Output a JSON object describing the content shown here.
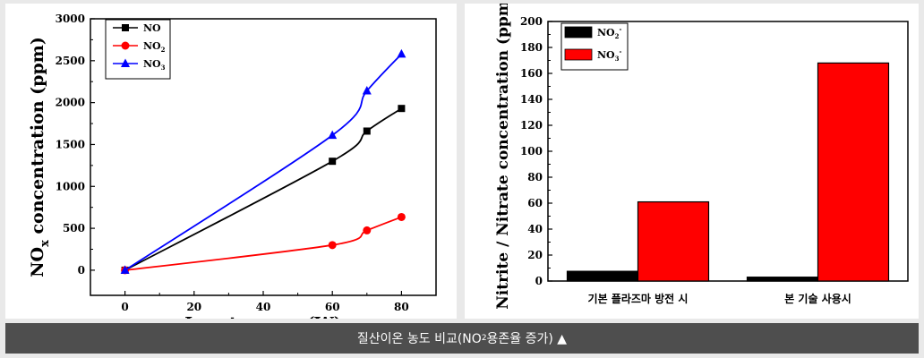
{
  "chart_data": [
    {
      "type": "line",
      "xlabel": "Input power (W)",
      "ylabel_main": "NO",
      "ylabel_sub": "x",
      "ylabel_rest": " concentration (ppm)",
      "xlim": [
        -10,
        90
      ],
      "ylim": [
        -300,
        3000
      ],
      "xticks": [
        "0",
        "20",
        "40",
        "60",
        "80"
      ],
      "yticks": [
        "0",
        "500",
        "1000",
        "1500",
        "2000",
        "2500",
        "3000"
      ],
      "legend_position": "top-left",
      "series": [
        {
          "name": "NO",
          "sub": "",
          "color": "#000000",
          "marker": "square",
          "x": [
            0,
            60,
            70,
            80
          ],
          "y": [
            0,
            1300,
            1660,
            1930
          ]
        },
        {
          "name": "NO",
          "sub": "2",
          "color": "#ff0000",
          "marker": "circle",
          "x": [
            0,
            60,
            70,
            80
          ],
          "y": [
            0,
            300,
            475,
            635
          ]
        },
        {
          "name": "NO",
          "sub": "3",
          "color": "#0000ff",
          "marker": "triangle",
          "x": [
            0,
            60,
            70,
            80
          ],
          "y": [
            0,
            1610,
            2140,
            2580
          ]
        }
      ]
    },
    {
      "type": "bar",
      "ylabel": "Nitrite / Nitrate concentration (ppm)",
      "ylim": [
        0,
        200
      ],
      "yticks": [
        "0",
        "20",
        "40",
        "60",
        "80",
        "100",
        "120",
        "140",
        "160",
        "180",
        "200"
      ],
      "categories": [
        "기본 플라즈마 방전 시",
        "본 기술 사용시"
      ],
      "legend_position": "top-left",
      "series": [
        {
          "name": "NO",
          "sub": "2",
          "sup": "-",
          "color": "#000000",
          "values": [
            7.5,
            3
          ]
        },
        {
          "name": "NO",
          "sub": "3",
          "sup": "-",
          "color": "#ff0000",
          "values": [
            61,
            168
          ]
        }
      ]
    }
  ],
  "caption": {
    "text_before": "질산이온 농도 비교(NO",
    "text_sub": "2",
    "text_after": " 용존율 증가) ▲"
  }
}
